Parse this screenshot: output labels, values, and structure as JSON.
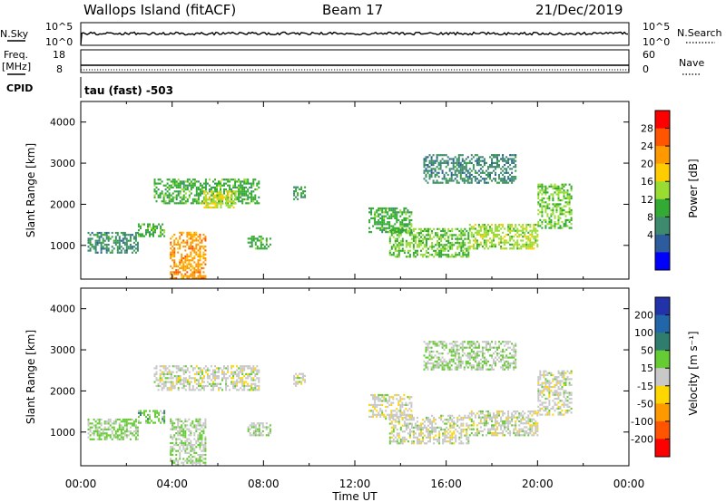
{
  "header": {
    "station": "Wallops Island (fitACF)",
    "beam": "Beam 17",
    "date": "21/Dec/2019"
  },
  "top_panels": {
    "nsky_label": "N.Sky",
    "nsky_ticks": [
      "10^5",
      "10^0"
    ],
    "nsearch_label": "N.Search",
    "nsearch_ticks": [
      "10^5",
      "10^0"
    ],
    "freq_label": "Freq.",
    "freq_unit": "[MHz]",
    "freq_ticks": [
      "18",
      "8"
    ],
    "nave_label": "Nave",
    "nave_ticks": [
      "60",
      "0"
    ],
    "cpid_label": "CPID",
    "cpid_text": "tau (fast) -503"
  },
  "x_axis": {
    "label": "Time UT",
    "tick_labels": [
      "00:00",
      "04:00",
      "08:00",
      "12:00",
      "16:00",
      "20:00",
      "00:00"
    ]
  },
  "power_colorbar": {
    "label": "Power [dB]",
    "tick_labels": [
      "28",
      "24",
      "20",
      "16",
      "12",
      "8",
      "4"
    ],
    "colors": [
      "#ff0000",
      "#ff5500",
      "#ff9900",
      "#ffcc00",
      "#99dd33",
      "#33aa33",
      "#3e8a6e",
      "#2c5c9e",
      "#0000ff"
    ]
  },
  "velocity_colorbar": {
    "label": "Velocity [m s⁻¹]",
    "tick_labels": [
      "200",
      "100",
      "50",
      "15",
      "-15",
      "-50",
      "-100",
      "-200"
    ],
    "colors": [
      "#2233aa",
      "#2266aa",
      "#2e7d6e",
      "#66cc33",
      "#c8c8c8",
      "#ffd700",
      "#ff9900",
      "#ff5500",
      "#ff0000"
    ]
  },
  "chart_data": [
    {
      "type": "heatmap",
      "ylabel": "Slant Range [km]",
      "xlabel": "",
      "y_ticks": [
        1000,
        2000,
        3000,
        4000
      ],
      "ylim": [
        180,
        4500
      ],
      "xlim": [
        0,
        24
      ],
      "x_unit": "hours UT",
      "value_label": "Power [dB]",
      "clim": [
        0,
        32
      ],
      "regions": [
        {
          "t_start": 0.3,
          "t_end": 2.5,
          "r_start": 800,
          "r_end": 1300,
          "level": 8
        },
        {
          "t_start": 2.5,
          "t_end": 3.7,
          "r_start": 1200,
          "r_end": 1500,
          "level": 12
        },
        {
          "t_start": 3.9,
          "t_end": 5.5,
          "r_start": 180,
          "r_end": 1300,
          "level": 24
        },
        {
          "t_start": 3.2,
          "t_end": 7.8,
          "r_start": 2000,
          "r_end": 2600,
          "level": 12
        },
        {
          "t_start": 5.3,
          "t_end": 6.8,
          "r_start": 1900,
          "r_end": 2300,
          "level": 18
        },
        {
          "t_start": 7.3,
          "t_end": 8.3,
          "r_start": 900,
          "r_end": 1200,
          "level": 12
        },
        {
          "t_start": 9.3,
          "t_end": 9.8,
          "r_start": 2100,
          "r_end": 2400,
          "level": 10
        },
        {
          "t_start": 13.5,
          "t_end": 17.0,
          "r_start": 700,
          "r_end": 1400,
          "level": 14
        },
        {
          "t_start": 12.6,
          "t_end": 14.5,
          "r_start": 1300,
          "r_end": 1900,
          "level": 12
        },
        {
          "t_start": 17.0,
          "t_end": 20.0,
          "r_start": 900,
          "r_end": 1500,
          "level": 16
        },
        {
          "t_start": 20.0,
          "t_end": 21.5,
          "r_start": 1400,
          "r_end": 2500,
          "level": 14
        },
        {
          "t_start": 15.0,
          "t_end": 19.0,
          "r_start": 2500,
          "r_end": 3200,
          "level": 8
        }
      ]
    },
    {
      "type": "heatmap",
      "ylabel": "Slant Range [km]",
      "xlabel": "Time UT",
      "y_ticks": [
        1000,
        2000,
        3000,
        4000
      ],
      "ylim": [
        180,
        4500
      ],
      "xlim": [
        0,
        24
      ],
      "x_unit": "hours UT",
      "value_label": "Velocity [m s⁻¹]",
      "clim": [
        -250,
        250
      ],
      "regions": [
        {
          "t_start": 0.3,
          "t_end": 2.5,
          "r_start": 800,
          "r_end": 1300,
          "level": 40
        },
        {
          "t_start": 2.5,
          "t_end": 3.7,
          "r_start": 1200,
          "r_end": 1500,
          "level": 60
        },
        {
          "t_start": 3.9,
          "t_end": 5.5,
          "r_start": 180,
          "r_end": 1300,
          "level": 30
        },
        {
          "t_start": 3.2,
          "t_end": 7.8,
          "r_start": 2000,
          "r_end": 2600,
          "level": 0
        },
        {
          "t_start": 7.3,
          "t_end": 8.3,
          "r_start": 900,
          "r_end": 1200,
          "level": 20
        },
        {
          "t_start": 9.3,
          "t_end": 9.8,
          "r_start": 2100,
          "r_end": 2400,
          "level": 0
        },
        {
          "t_start": 13.5,
          "t_end": 17.0,
          "r_start": 700,
          "r_end": 1400,
          "level": 0
        },
        {
          "t_start": 12.6,
          "t_end": 14.5,
          "r_start": 1300,
          "r_end": 1900,
          "level": 0
        },
        {
          "t_start": 17.0,
          "t_end": 20.0,
          "r_start": 900,
          "r_end": 1500,
          "level": 0
        },
        {
          "t_start": 20.0,
          "t_end": 21.5,
          "r_start": 1400,
          "r_end": 2500,
          "level": 0
        },
        {
          "t_start": 15.0,
          "t_end": 19.0,
          "r_start": 2500,
          "r_end": 3200,
          "level": 30
        }
      ]
    }
  ]
}
